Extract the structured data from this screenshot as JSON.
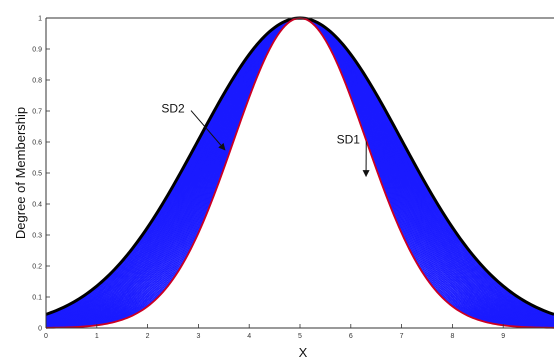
{
  "chart_data": {
    "type": "line",
    "title": "",
    "xlabel": "X",
    "ylabel": "Degree of Membership",
    "xlim": [
      0,
      10
    ],
    "ylim": [
      0,
      1
    ],
    "x_ticks": [
      "0",
      "1",
      "2",
      "3",
      "4",
      "5",
      "6",
      "7",
      "8",
      "9"
    ],
    "y_ticks": [
      "0",
      "0.1",
      "0.2",
      "0.3",
      "0.4",
      "0.5",
      "0.6",
      "0.7",
      "0.8",
      "0.9",
      "1"
    ],
    "grid": false,
    "series": [
      {
        "name": "SD2",
        "mean": 5,
        "sd": 2,
        "color": "#000000"
      },
      {
        "name": "SD1",
        "mean": 5,
        "sd": 1.3,
        "color": "#cc0022"
      }
    ],
    "fill_between": {
      "color": "#1a1aff",
      "line_count": 45
    },
    "annotations": [
      {
        "text": "SD2",
        "x": 2.5,
        "y": 0.695,
        "arrow_to": [
          3.52,
          0.575
        ]
      },
      {
        "text": "SD1",
        "x": 5.95,
        "y": 0.595,
        "arrow_to": [
          6.3,
          0.49
        ]
      }
    ]
  }
}
